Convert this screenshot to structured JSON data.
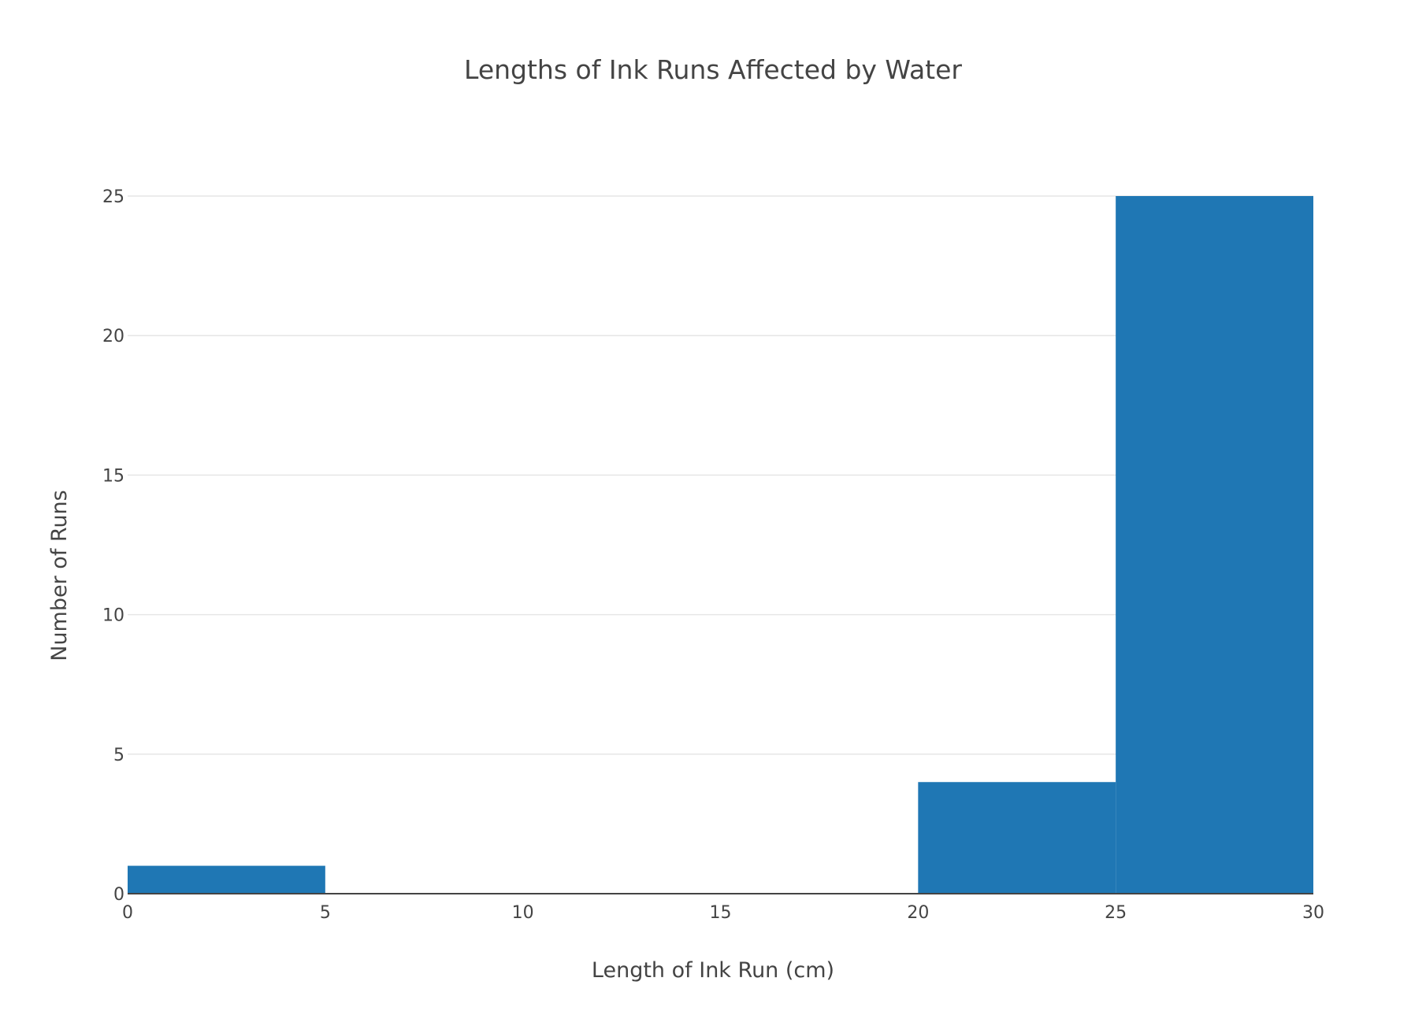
{
  "chart_data": {
    "type": "bar",
    "title": "Lengths of Ink Runs Affected by Water",
    "xlabel": "Length of Ink Run (cm)",
    "ylabel": "Number of Runs",
    "xlim": [
      0,
      30
    ],
    "ylim": [
      0,
      25
    ],
    "x_ticks": [
      "0",
      "5",
      "10",
      "15",
      "20",
      "25",
      "30"
    ],
    "y_ticks": [
      "0",
      "5",
      "10",
      "15",
      "20",
      "25"
    ],
    "grid": true,
    "legend": "none",
    "bins": [
      {
        "start": 0,
        "end": 5,
        "count": 1
      },
      {
        "start": 5,
        "end": 10,
        "count": 0
      },
      {
        "start": 10,
        "end": 15,
        "count": 0
      },
      {
        "start": 15,
        "end": 20,
        "count": 0
      },
      {
        "start": 20,
        "end": 25,
        "count": 4
      },
      {
        "start": 25,
        "end": 30,
        "count": 25
      }
    ],
    "colors": {
      "bar": "#1f77b4",
      "grid": "#e6e6e6",
      "baseline": "#444444",
      "text": "#444444"
    }
  }
}
